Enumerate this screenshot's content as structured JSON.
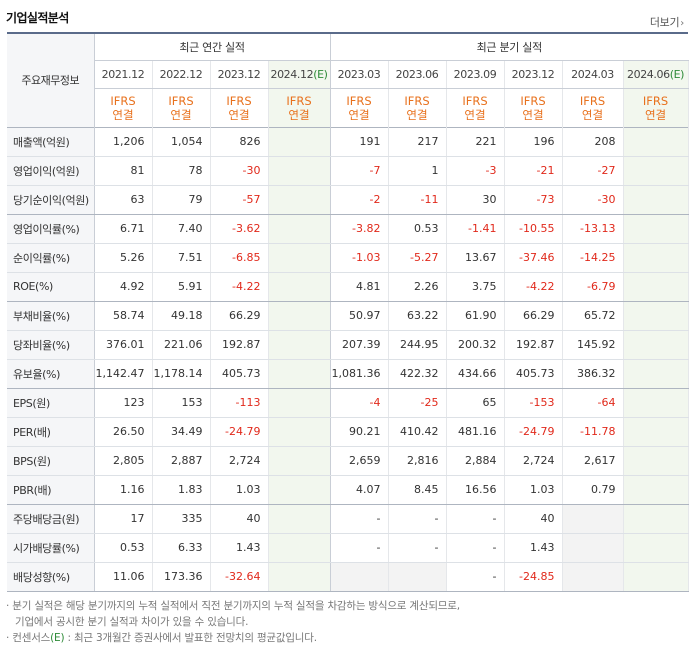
{
  "header": {
    "title": "기업실적분석",
    "more_label": "더보기",
    "more_arrow": "›"
  },
  "groups": {
    "annual": "최근 연간 실적",
    "quarterly": "최근 분기 실적"
  },
  "row_header_label": "주요재무정보",
  "periods": [
    {
      "label": "2021.12",
      "est": false
    },
    {
      "label": "2022.12",
      "est": false
    },
    {
      "label": "2023.12",
      "est": false
    },
    {
      "label": "2024.12",
      "est": true
    },
    {
      "label": "2023.03",
      "est": false
    },
    {
      "label": "2023.06",
      "est": false
    },
    {
      "label": "2023.09",
      "est": false
    },
    {
      "label": "2023.12",
      "est": false
    },
    {
      "label": "2024.03",
      "est": false
    },
    {
      "label": "2024.06",
      "est": true
    }
  ],
  "est_mark": "(E)",
  "ifrs": {
    "line1": "IFRS",
    "line2": "연결"
  },
  "rows": [
    {
      "label": "매출액(억원)",
      "values": [
        "1,206",
        "1,054",
        "826",
        "",
        "191",
        "217",
        "221",
        "196",
        "208",
        ""
      ]
    },
    {
      "label": "영업이익(억원)",
      "values": [
        "81",
        "78",
        "-30",
        "",
        "-7",
        "1",
        "-3",
        "-21",
        "-27",
        ""
      ]
    },
    {
      "label": "당기순이익(억원)",
      "values": [
        "63",
        "79",
        "-57",
        "",
        "-2",
        "-11",
        "30",
        "-73",
        "-30",
        ""
      ]
    },
    {
      "label": "영업이익률(%)",
      "values": [
        "6.71",
        "7.40",
        "-3.62",
        "",
        "-3.82",
        "0.53",
        "-1.41",
        "-10.55",
        "-13.13",
        ""
      ]
    },
    {
      "label": "순이익률(%)",
      "values": [
        "5.26",
        "7.51",
        "-6.85",
        "",
        "-1.03",
        "-5.27",
        "13.67",
        "-37.46",
        "-14.25",
        ""
      ]
    },
    {
      "label": "ROE(%)",
      "values": [
        "4.92",
        "5.91",
        "-4.22",
        "",
        "4.81",
        "2.26",
        "3.75",
        "-4.22",
        "-6.79",
        ""
      ]
    },
    {
      "label": "부채비율(%)",
      "values": [
        "58.74",
        "49.18",
        "66.29",
        "",
        "50.97",
        "63.22",
        "61.90",
        "66.29",
        "65.72",
        ""
      ]
    },
    {
      "label": "당좌비율(%)",
      "values": [
        "376.01",
        "221.06",
        "192.87",
        "",
        "207.39",
        "244.95",
        "200.32",
        "192.87",
        "145.92",
        ""
      ]
    },
    {
      "label": "유보율(%)",
      "values": [
        "1,142.47",
        "1,178.14",
        "405.73",
        "",
        "1,081.36",
        "422.32",
        "434.66",
        "405.73",
        "386.32",
        ""
      ]
    },
    {
      "label": "EPS(원)",
      "values": [
        "123",
        "153",
        "-113",
        "",
        "-4",
        "-25",
        "65",
        "-153",
        "-64",
        ""
      ]
    },
    {
      "label": "PER(배)",
      "values": [
        "26.50",
        "34.49",
        "-24.79",
        "",
        "90.21",
        "410.42",
        "481.16",
        "-24.79",
        "-11.78",
        ""
      ]
    },
    {
      "label": "BPS(원)",
      "values": [
        "2,805",
        "2,887",
        "2,724",
        "",
        "2,659",
        "2,816",
        "2,884",
        "2,724",
        "2,617",
        ""
      ]
    },
    {
      "label": "PBR(배)",
      "values": [
        "1.16",
        "1.83",
        "1.03",
        "",
        "4.07",
        "8.45",
        "16.56",
        "1.03",
        "0.79",
        ""
      ]
    },
    {
      "label": "주당배당금(원)",
      "values": [
        "17",
        "335",
        "40",
        "",
        "-",
        "-",
        "-",
        "40",
        "",
        ""
      ]
    },
    {
      "label": "시가배당률(%)",
      "values": [
        "0.53",
        "6.33",
        "1.43",
        "",
        "-",
        "-",
        "-",
        "1.43",
        "",
        ""
      ]
    },
    {
      "label": "배당성향(%)",
      "values": [
        "11.06",
        "173.36",
        "-32.64",
        "",
        "",
        "",
        "-",
        "-24.85",
        "",
        ""
      ]
    }
  ],
  "notes": [
    "· 분기 실적은 해당 분기까지의 누적 실적에서 직전 분기까지의 누적 실적을 차감하는 방식으로 계산되므로,",
    "기업에서 공시한 분기 실적과 차이가 있을 수 있습니다.",
    "· 컨센서스",
    ": 최근 3개월간 증권사에서 발표한 전망치의 평균값입니다."
  ],
  "colors": {
    "negative": "#e1291b",
    "ifrs": "#e8711d",
    "estimate_bg": "#f2f7ee",
    "estimate_mark": "#2e8b38"
  }
}
